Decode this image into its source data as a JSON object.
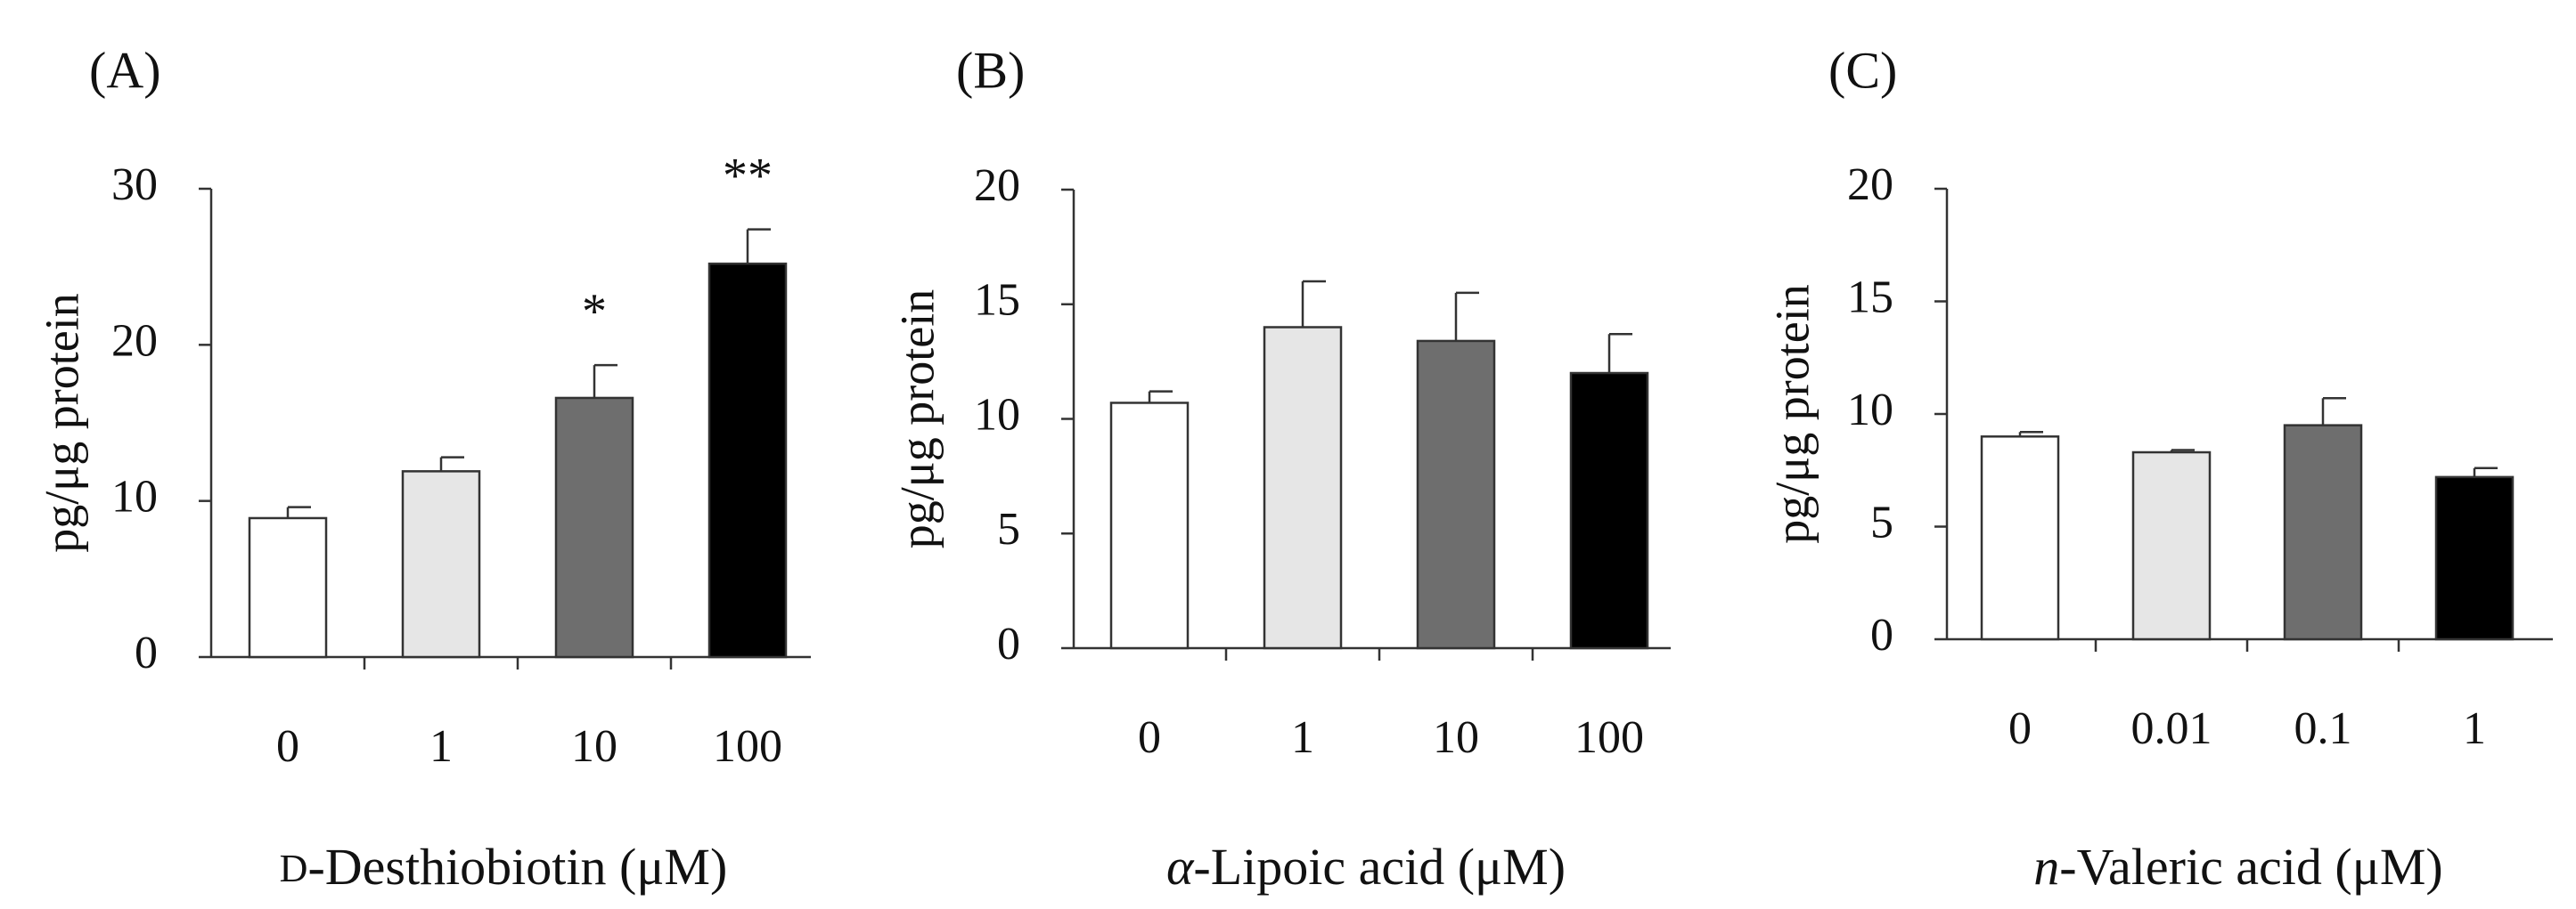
{
  "chart_data": [
    {
      "type": "bar",
      "panel_label": "(A)",
      "title": "",
      "xlabel": "D-Desthiobiotin (μM)",
      "xlabel_parts": [
        {
          "text": "D",
          "style": "smallcaps"
        },
        {
          "text": "-Desthiobiotin (μM)",
          "style": "normal"
        }
      ],
      "ylabel": "pg/μg protein",
      "ylim": [
        0,
        30
      ],
      "yticks": [
        0,
        10,
        20,
        30
      ],
      "categories": [
        "0",
        "1",
        "10",
        "100"
      ],
      "values": [
        8.9,
        11.9,
        16.6,
        25.2
      ],
      "errors": [
        0.7,
        0.9,
        2.1,
        2.2
      ],
      "colors": [
        "#ffffff",
        "#e6e6e6",
        "#6e6e6e",
        "#000000"
      ],
      "significance": [
        "",
        "",
        "*",
        "**"
      ],
      "grid": false,
      "legend": "none"
    },
    {
      "type": "bar",
      "panel_label": "(B)",
      "title": "",
      "xlabel": "α-Lipoic acid (μM)",
      "xlabel_parts": [
        {
          "text": "α",
          "style": "italic"
        },
        {
          "text": "-Lipoic acid (μM)",
          "style": "normal"
        }
      ],
      "ylabel": "pg/μg protein",
      "ylim": [
        0,
        20
      ],
      "yticks": [
        0,
        5,
        10,
        15,
        20
      ],
      "categories": [
        "0",
        "1",
        "10",
        "100"
      ],
      "values": [
        10.7,
        14.0,
        13.4,
        12.0
      ],
      "errors": [
        0.5,
        2.0,
        2.1,
        1.7
      ],
      "colors": [
        "#ffffff",
        "#e6e6e6",
        "#6e6e6e",
        "#000000"
      ],
      "significance": [
        "",
        "",
        "",
        ""
      ],
      "grid": false,
      "legend": "none"
    },
    {
      "type": "bar",
      "panel_label": "(C)",
      "title": "",
      "xlabel": "n-Valeric acid (μM)",
      "xlabel_parts": [
        {
          "text": "n",
          "style": "italic"
        },
        {
          "text": "-Valeric acid (μM)",
          "style": "normal"
        }
      ],
      "ylabel": "pg/μg protein",
      "ylim": [
        0,
        20
      ],
      "yticks": [
        0,
        5,
        10,
        15,
        20
      ],
      "categories": [
        "0",
        "0.01",
        "0.1",
        "1"
      ],
      "values": [
        9.0,
        8.3,
        9.5,
        7.2
      ],
      "errors": [
        0.2,
        0.1,
        1.2,
        0.4
      ],
      "colors": [
        "#ffffff",
        "#e6e6e6",
        "#6e6e6e",
        "#000000"
      ],
      "significance": [
        "",
        "",
        "",
        ""
      ],
      "grid": false,
      "legend": "none"
    }
  ]
}
